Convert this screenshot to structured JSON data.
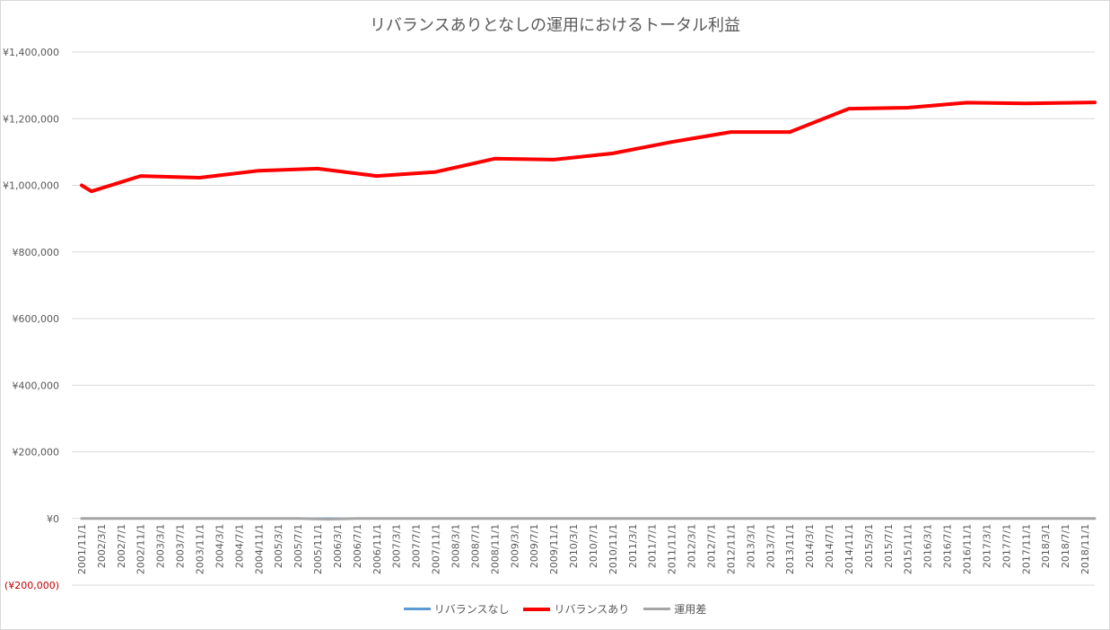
{
  "chart_data": {
    "type": "line",
    "title": "リバランスありとなしの運用におけるトータル利益",
    "xlabel": "",
    "ylabel": "",
    "ylim": [
      -200000,
      1400000
    ],
    "yticks": [
      -200000,
      0,
      200000,
      400000,
      600000,
      800000,
      1000000,
      1200000,
      1400000
    ],
    "ytick_labels": [
      "(¥200,000)",
      "¥0",
      "¥200,000",
      "¥400,000",
      "¥600,000",
      "¥800,000",
      "¥1,000,000",
      "¥1,200,000",
      "¥1,400,000"
    ],
    "grid": true,
    "legend_position": "bottom",
    "x_labels": [
      "2001/11/1",
      "2002/3/1",
      "2002/7/1",
      "2002/11/1",
      "2003/3/1",
      "2003/7/1",
      "2003/11/1",
      "2004/3/1",
      "2004/7/1",
      "2004/11/1",
      "2005/3/1",
      "2005/7/1",
      "2005/11/1",
      "2006/3/1",
      "2006/7/1",
      "2006/11/1",
      "2007/3/1",
      "2007/7/1",
      "2007/11/1",
      "2008/3/1",
      "2008/7/1",
      "2008/11/1",
      "2009/3/1",
      "2009/7/1",
      "2009/11/1",
      "2010/3/1",
      "2010/7/1",
      "2010/11/1",
      "2011/3/1",
      "2011/7/1",
      "2011/11/1",
      "2012/3/1",
      "2012/7/1",
      "2012/11/1",
      "2013/3/1",
      "2013/7/1",
      "2013/11/1",
      "2014/3/1",
      "2014/7/1",
      "2014/11/1",
      "2015/3/1",
      "2015/7/1",
      "2015/11/1",
      "2016/3/1",
      "2016/7/1",
      "2016/11/1",
      "2017/3/1",
      "2017/7/1",
      "2017/11/1",
      "2018/3/1",
      "2018/7/1",
      "2018/11/1"
    ],
    "series": [
      {
        "name": "リバランスなし",
        "color": "#5b9bd5",
        "points": [
          [
            0,
            0
          ],
          [
            51.5,
            0
          ]
        ]
      },
      {
        "name": "リバランスあり",
        "color": "#ff0000",
        "points": [
          [
            0,
            1000000
          ],
          [
            0.5,
            982000
          ],
          [
            3,
            1028000
          ],
          [
            6,
            1023000
          ],
          [
            9,
            1044000
          ],
          [
            12,
            1050000
          ],
          [
            15,
            1028000
          ],
          [
            18,
            1040000
          ],
          [
            21,
            1080000
          ],
          [
            24,
            1077000
          ],
          [
            27,
            1096000
          ],
          [
            30,
            1130000
          ],
          [
            33,
            1160000
          ],
          [
            36,
            1160000
          ],
          [
            39,
            1230000
          ],
          [
            42,
            1233000
          ],
          [
            45,
            1248000
          ],
          [
            48,
            1246000
          ],
          [
            51.5,
            1249000
          ]
        ]
      },
      {
        "name": "運用差",
        "color": "#a5a5a5",
        "points": [
          [
            0,
            0
          ],
          [
            11,
            0
          ],
          [
            12.5,
            -2000
          ],
          [
            14,
            0
          ],
          [
            51.5,
            0
          ]
        ]
      }
    ]
  }
}
